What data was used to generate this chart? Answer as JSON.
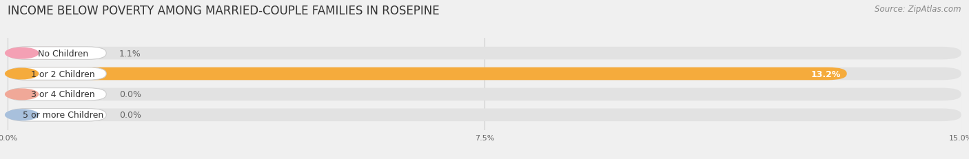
{
  "title": "INCOME BELOW POVERTY AMONG MARRIED-COUPLE FAMILIES IN ROSEPINE",
  "source": "Source: ZipAtlas.com",
  "categories": [
    "No Children",
    "1 or 2 Children",
    "3 or 4 Children",
    "5 or more Children"
  ],
  "values": [
    1.1,
    13.2,
    0.0,
    0.0
  ],
  "bar_colors": [
    "#f4a0b4",
    "#f5ab3c",
    "#f0a898",
    "#a8c0dc"
  ],
  "bg_color": "#f0f0f0",
  "bar_bg_color": "#e2e2e2",
  "xlim": [
    0,
    15.0
  ],
  "xticks": [
    0.0,
    7.5,
    15.0
  ],
  "xtick_labels": [
    "0.0%",
    "7.5%",
    "15.0%"
  ],
  "title_fontsize": 12,
  "source_fontsize": 8.5,
  "bar_height": 0.62,
  "bar_label_fontsize": 9,
  "category_fontsize": 9,
  "value_label_color_inside": "#ffffff",
  "value_label_color_outside": "#666666"
}
